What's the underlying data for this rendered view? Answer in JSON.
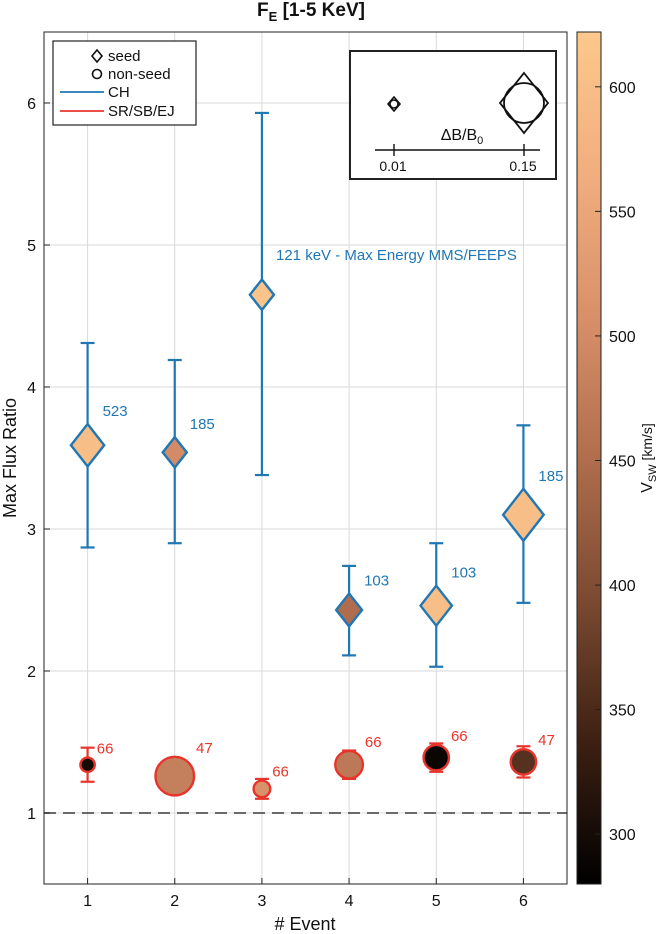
{
  "chart_data": {
    "type": "scatter",
    "title": "F",
    "title_subscript": "E",
    "title_suffix": " [1-5 KeV]",
    "xlabel": "# Event",
    "ylabel": "Max Flux Ratio",
    "xlim": [
      0.5,
      6.5
    ],
    "ylim": [
      0.5,
      6.5
    ],
    "x_ticks": [
      1,
      2,
      3,
      4,
      5,
      6
    ],
    "y_ticks": [
      1,
      2,
      3,
      4,
      5,
      6
    ],
    "grid": true,
    "reference_line": {
      "y": 1,
      "style": "dashed"
    },
    "legend": {
      "placement": "top-left",
      "entries": [
        {
          "label": "seed",
          "marker": "diamond"
        },
        {
          "label": "non-seed",
          "marker": "circle"
        },
        {
          "label": "CH",
          "color": "#1f77b4"
        },
        {
          "label": "SR/SB/EJ",
          "color": "#e8352b"
        }
      ]
    },
    "size_key": {
      "placement": "top-right",
      "label": "ΔB/B",
      "label_subscript": "0",
      "ticks": [
        "0.01",
        "0.15"
      ]
    },
    "annotation": "121 keV - Max Energy MMS/FEEPS",
    "colorbar": {
      "label": "V",
      "label_subscript": "SW",
      "label_suffix": " [km/s]",
      "range": [
        280,
        622
      ],
      "ticks": [
        300,
        350,
        400,
        450,
        500,
        550,
        600
      ],
      "colors": [
        "#000000",
        "#3d2012",
        "#7b4a31",
        "#b06e4d",
        "#d8906a",
        "#f1ae7e",
        "#fdc88c"
      ]
    },
    "series": [
      {
        "name": "CH",
        "color": "#1f77b4",
        "marker": "diamond",
        "points": [
          {
            "x": 1,
            "y": 3.59,
            "yerr_low": 2.87,
            "yerr_high": 4.31,
            "label": "523",
            "vsw": 600,
            "size": 0.11
          },
          {
            "x": 2,
            "y": 3.54,
            "yerr_low": 2.9,
            "yerr_high": 4.19,
            "label": "185",
            "vsw": 500,
            "size": 0.06
          },
          {
            "x": 3,
            "y": 4.65,
            "yerr_low": 3.38,
            "yerr_high": 5.93,
            "label": "",
            "vsw": 610,
            "size": 0.06
          },
          {
            "x": 4,
            "y": 2.43,
            "yerr_low": 2.11,
            "yerr_high": 2.74,
            "label": "103",
            "vsw": 450,
            "size": 0.07
          },
          {
            "x": 5,
            "y": 2.46,
            "yerr_low": 2.03,
            "yerr_high": 2.9,
            "label": "103",
            "vsw": 600,
            "size": 0.1
          },
          {
            "x": 6,
            "y": 3.1,
            "yerr_low": 2.48,
            "yerr_high": 3.73,
            "label": "185",
            "vsw": 600,
            "size": 0.15
          }
        ]
      },
      {
        "name": "SR/SB/EJ",
        "color": "#e8352b",
        "marker": "circle",
        "points": [
          {
            "x": 1,
            "y": 1.34,
            "yerr_low": 1.22,
            "yerr_high": 1.46,
            "label": "66",
            "vsw": 300,
            "size": 0.02
          },
          {
            "x": 2,
            "y": 1.26,
            "yerr_low": 1.26,
            "yerr_high": 1.26,
            "label": "47",
            "vsw": 480,
            "size": 0.13
          },
          {
            "x": 3,
            "y": 1.17,
            "yerr_low": 1.1,
            "yerr_high": 1.24,
            "label": "66",
            "vsw": 510,
            "size": 0.03
          },
          {
            "x": 4,
            "y": 1.34,
            "yerr_low": 1.24,
            "yerr_high": 1.44,
            "label": "66",
            "vsw": 470,
            "size": 0.08
          },
          {
            "x": 5,
            "y": 1.39,
            "yerr_low": 1.29,
            "yerr_high": 1.49,
            "label": "66",
            "vsw": 290,
            "size": 0.07
          },
          {
            "x": 6,
            "y": 1.36,
            "yerr_low": 1.25,
            "yerr_high": 1.47,
            "label": "47",
            "vsw": 360,
            "size": 0.07
          }
        ]
      }
    ]
  }
}
